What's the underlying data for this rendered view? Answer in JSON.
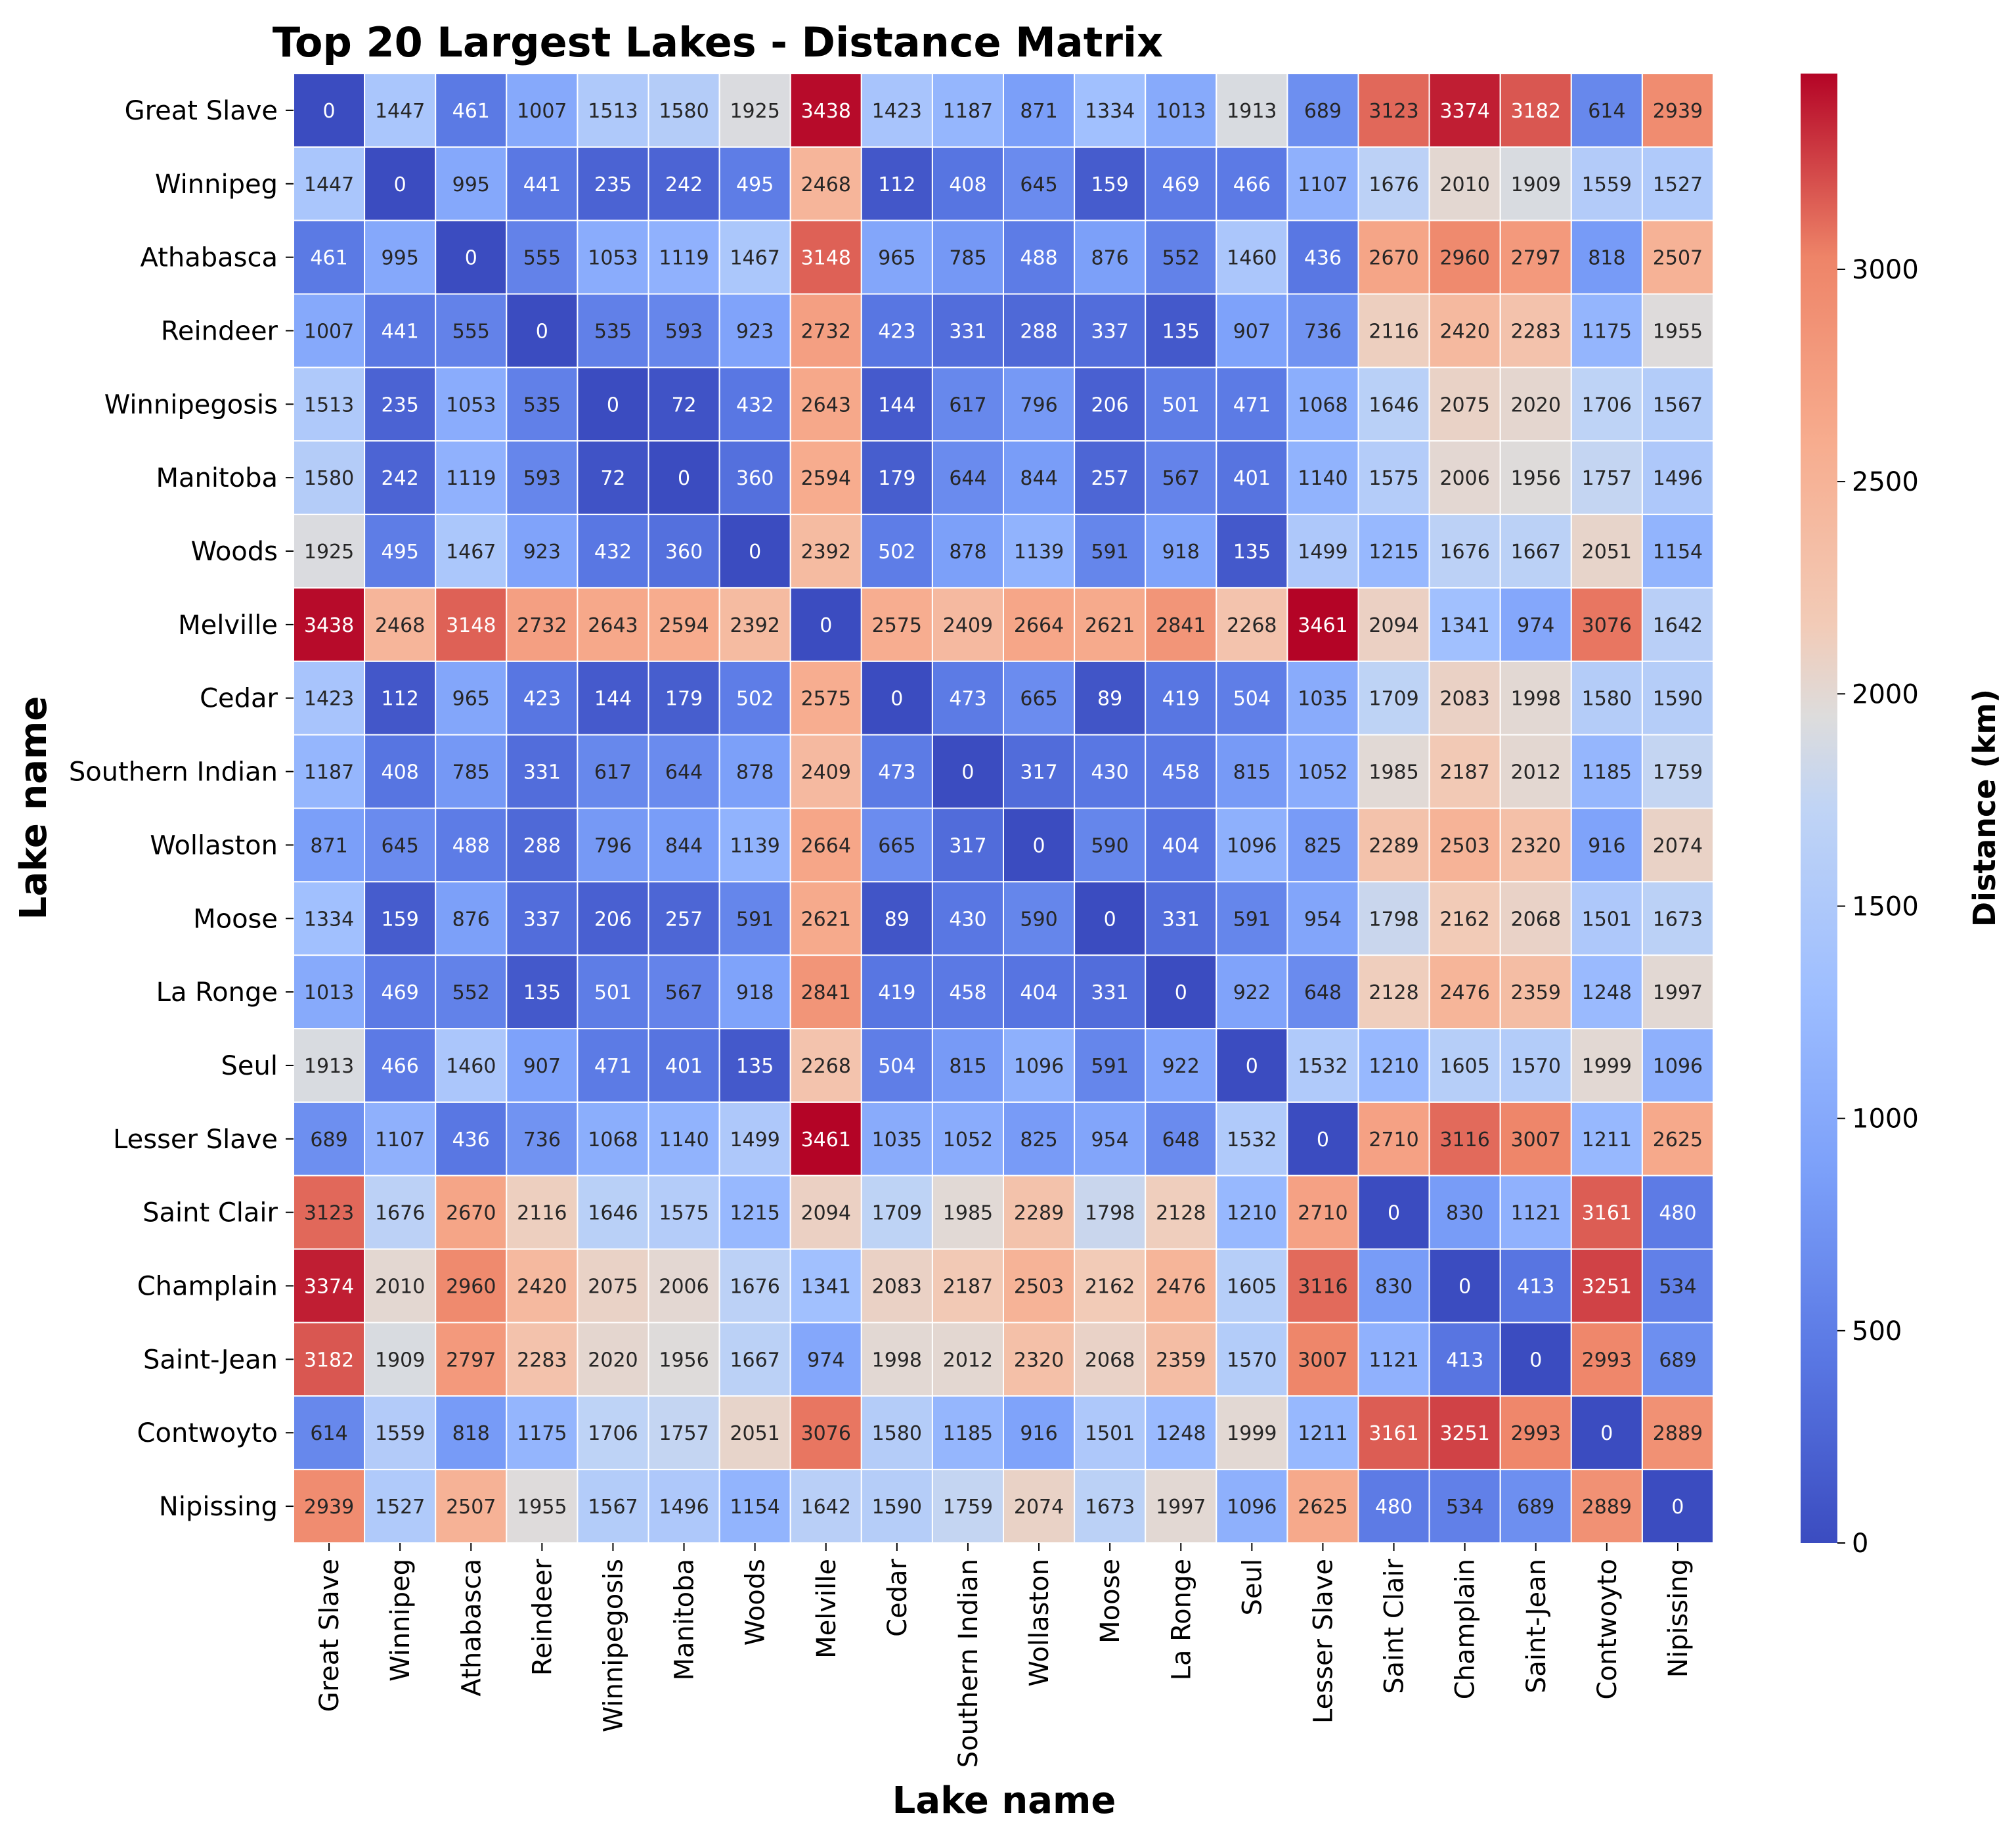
{
  "chart_data": {
    "type": "heatmap",
    "title": "Top 20 Largest Lakes - Distance Matrix",
    "xlabel": "Lake name",
    "ylabel": "Lake name",
    "colorbar_label": "Distance (km)",
    "colormap": "coolwarm",
    "vmin": 0,
    "vmax": 3461,
    "colorbar_ticks": [
      0,
      500,
      1000,
      1500,
      2000,
      2500,
      3000
    ],
    "categories": [
      "Great Slave",
      "Winnipeg",
      "Athabasca",
      "Reindeer",
      "Winnipegosis",
      "Manitoba",
      "Woods",
      "Melville",
      "Cedar",
      "Southern Indian",
      "Wollaston",
      "Moose",
      "La Ronge",
      "Seul",
      "Lesser Slave",
      "Saint Clair",
      "Champlain",
      "Saint-Jean",
      "Contwoyto",
      "Nipissing"
    ],
    "values": [
      [
        0,
        1447,
        461,
        1007,
        1513,
        1580,
        1925,
        3438,
        1423,
        1187,
        871,
        1334,
        1013,
        1913,
        689,
        3123,
        3374,
        3182,
        614,
        2939
      ],
      [
        1447,
        0,
        995,
        441,
        235,
        242,
        495,
        2468,
        112,
        408,
        645,
        159,
        469,
        466,
        1107,
        1676,
        2010,
        1909,
        1559,
        1527
      ],
      [
        461,
        995,
        0,
        555,
        1053,
        1119,
        1467,
        3148,
        965,
        785,
        488,
        876,
        552,
        1460,
        436,
        2670,
        2960,
        2797,
        818,
        2507
      ],
      [
        1007,
        441,
        555,
        0,
        535,
        593,
        923,
        2732,
        423,
        331,
        288,
        337,
        135,
        907,
        736,
        2116,
        2420,
        2283,
        1175,
        1955
      ],
      [
        1513,
        235,
        1053,
        535,
        0,
        72,
        432,
        2643,
        144,
        617,
        796,
        206,
        501,
        471,
        1068,
        1646,
        2075,
        2020,
        1706,
        1567
      ],
      [
        1580,
        242,
        1119,
        593,
        72,
        0,
        360,
        2594,
        179,
        644,
        844,
        257,
        567,
        401,
        1140,
        1575,
        2006,
        1956,
        1757,
        1496
      ],
      [
        1925,
        495,
        1467,
        923,
        432,
        360,
        0,
        2392,
        502,
        878,
        1139,
        591,
        918,
        135,
        1499,
        1215,
        1676,
        1667,
        2051,
        1154
      ],
      [
        3438,
        2468,
        3148,
        2732,
        2643,
        2594,
        2392,
        0,
        2575,
        2409,
        2664,
        2621,
        2841,
        2268,
        3461,
        2094,
        1341,
        974,
        3076,
        1642
      ],
      [
        1423,
        112,
        965,
        423,
        144,
        179,
        502,
        2575,
        0,
        473,
        665,
        89,
        419,
        504,
        1035,
        1709,
        2083,
        1998,
        1580,
        1590
      ],
      [
        1187,
        408,
        785,
        331,
        617,
        644,
        878,
        2409,
        473,
        0,
        317,
        430,
        458,
        815,
        1052,
        1985,
        2187,
        2012,
        1185,
        1759
      ],
      [
        871,
        645,
        488,
        288,
        796,
        844,
        1139,
        2664,
        665,
        317,
        0,
        590,
        404,
        1096,
        825,
        2289,
        2503,
        2320,
        916,
        2074
      ],
      [
        1334,
        159,
        876,
        337,
        206,
        257,
        591,
        2621,
        89,
        430,
        590,
        0,
        331,
        591,
        954,
        1798,
        2162,
        2068,
        1501,
        1673
      ],
      [
        1013,
        469,
        552,
        135,
        501,
        567,
        918,
        2841,
        419,
        458,
        404,
        331,
        0,
        922,
        648,
        2128,
        2476,
        2359,
        1248,
        1997
      ],
      [
        1913,
        466,
        1460,
        907,
        471,
        401,
        135,
        2268,
        504,
        815,
        1096,
        591,
        922,
        0,
        1532,
        1210,
        1605,
        1570,
        1999,
        1096
      ],
      [
        689,
        1107,
        436,
        736,
        1068,
        1140,
        1499,
        3461,
        1035,
        1052,
        825,
        954,
        648,
        1532,
        0,
        2710,
        3116,
        3007,
        1211,
        2625
      ],
      [
        3123,
        1676,
        2670,
        2116,
        1646,
        1575,
        1215,
        2094,
        1709,
        1985,
        2289,
        1798,
        2128,
        1210,
        2710,
        0,
        830,
        1121,
        3161,
        480
      ],
      [
        3374,
        2010,
        2960,
        2420,
        2075,
        2006,
        1676,
        1341,
        2083,
        2187,
        2503,
        2162,
        2476,
        1605,
        3116,
        830,
        0,
        413,
        3251,
        534
      ],
      [
        3182,
        1909,
        2797,
        2283,
        2020,
        1956,
        1667,
        974,
        1998,
        2012,
        2320,
        2068,
        2359,
        1570,
        3007,
        1121,
        413,
        0,
        2993,
        689
      ],
      [
        614,
        1559,
        818,
        1175,
        1706,
        1757,
        2051,
        3076,
        1580,
        1185,
        916,
        1501,
        1248,
        1999,
        1211,
        3161,
        3251,
        2993,
        0,
        2889
      ],
      [
        2939,
        1527,
        2507,
        1955,
        1567,
        1496,
        1154,
        1642,
        1590,
        1759,
        2074,
        1673,
        1997,
        1096,
        2625,
        480,
        534,
        689,
        2889,
        0
      ]
    ]
  }
}
